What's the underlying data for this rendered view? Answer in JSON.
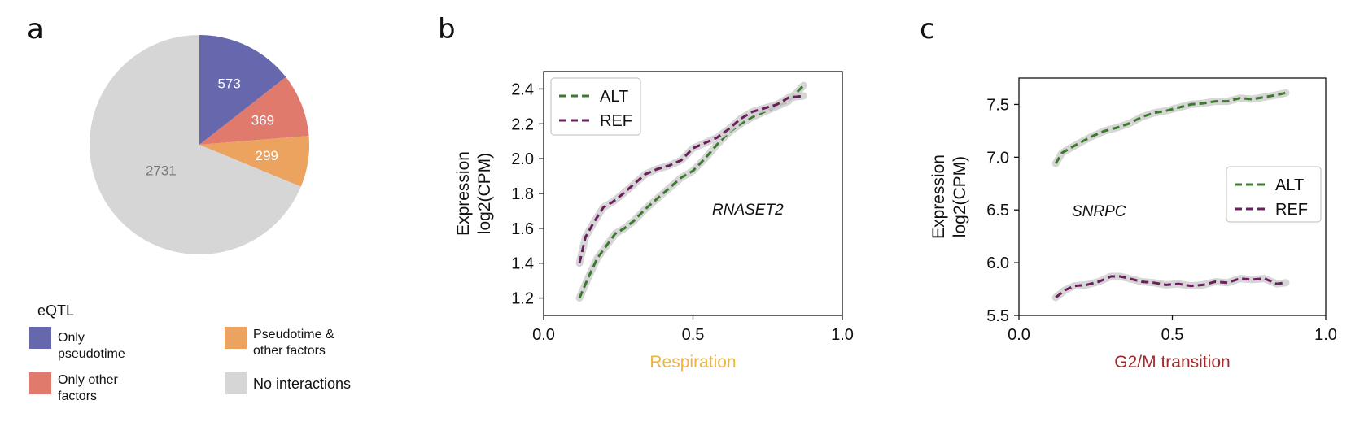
{
  "panels": {
    "a": "a",
    "b": "b",
    "c": "c"
  },
  "colors": {
    "only_pseudotime": "#6767ad",
    "only_other": "#df7a6d",
    "pseudotime_other": "#eba35f",
    "no_interactions": "#d6d6d6",
    "alt": "#3c7a2e",
    "ref": "#6b1f5e",
    "respiration_label": "#f0b240",
    "g2m_label": "#a02a2a"
  },
  "legend_a": {
    "title": "eQTL",
    "items": [
      {
        "key": "only_pseudotime",
        "label": "Only pseudotime"
      },
      {
        "key": "pseudotime_other",
        "label": "Pseudotime & other factors"
      },
      {
        "key": "only_other",
        "label": "Only other factors"
      },
      {
        "key": "no_interactions",
        "label": "No interactions"
      }
    ]
  },
  "chart_data": [
    {
      "type": "pie",
      "panel": "a",
      "slices": [
        {
          "label": "Only pseudotime",
          "value": 573,
          "color_key": "only_pseudotime"
        },
        {
          "label": "Only other factors",
          "value": 369,
          "color_key": "only_other"
        },
        {
          "label": "Pseudotime & other factors",
          "value": 299,
          "color_key": "pseudotime_other"
        },
        {
          "label": "No interactions",
          "value": 2731,
          "color_key": "no_interactions"
        }
      ],
      "start_angle_deg": 0,
      "direction": "clockwise"
    },
    {
      "type": "line",
      "panel": "b",
      "xlabel": "Respiration",
      "ylabel_lines": [
        "Expression",
        "log2(CPM)"
      ],
      "xlim": [
        0.0,
        1.0
      ],
      "ylim": [
        1.1,
        2.5
      ],
      "xticks": [
        0.0,
        0.5,
        1.0
      ],
      "xtick_labels": [
        "0.0",
        "0.5",
        "1.0"
      ],
      "yticks": [
        1.2,
        1.4,
        1.6,
        1.8,
        2.0,
        2.2,
        2.4
      ],
      "ytick_labels": [
        "1.2",
        "1.4",
        "1.6",
        "1.8",
        "2.0",
        "2.2",
        "2.4"
      ],
      "annotation": "RNASET2",
      "legend_position": "top-left",
      "grid": false,
      "series": [
        {
          "name": "ALT",
          "color_key": "alt",
          "x": [
            0.12,
            0.15,
            0.18,
            0.21,
            0.24,
            0.27,
            0.3,
            0.34,
            0.38,
            0.42,
            0.46,
            0.5,
            0.54,
            0.58,
            0.62,
            0.66,
            0.7,
            0.74,
            0.78,
            0.82,
            0.87
          ],
          "y": [
            1.2,
            1.32,
            1.43,
            1.5,
            1.57,
            1.6,
            1.64,
            1.71,
            1.77,
            1.83,
            1.89,
            1.93,
            2.0,
            2.08,
            2.15,
            2.2,
            2.24,
            2.27,
            2.3,
            2.33,
            2.42
          ]
        },
        {
          "name": "REF",
          "color_key": "ref",
          "x": [
            0.12,
            0.14,
            0.17,
            0.2,
            0.23,
            0.26,
            0.3,
            0.34,
            0.38,
            0.42,
            0.46,
            0.5,
            0.54,
            0.58,
            0.62,
            0.66,
            0.7,
            0.74,
            0.78,
            0.82,
            0.87
          ],
          "y": [
            1.4,
            1.55,
            1.64,
            1.72,
            1.75,
            1.79,
            1.85,
            1.91,
            1.94,
            1.96,
            1.99,
            2.06,
            2.09,
            2.12,
            2.17,
            2.23,
            2.27,
            2.29,
            2.31,
            2.35,
            2.36
          ]
        }
      ]
    },
    {
      "type": "line",
      "panel": "c",
      "xlabel": "G2/M transition",
      "ylabel_lines": [
        "Expression",
        "log2(CPM)"
      ],
      "xlim": [
        0.0,
        1.0
      ],
      "ylim": [
        5.5,
        7.75
      ],
      "xticks": [
        0.0,
        0.5,
        1.0
      ],
      "xtick_labels": [
        "0.0",
        "0.5",
        "1.0"
      ],
      "yticks": [
        5.5,
        6.0,
        6.5,
        7.0,
        7.5
      ],
      "ytick_labels": [
        "5.5",
        "6.0",
        "6.5",
        "7.0",
        "7.5"
      ],
      "annotation": "SNRPC",
      "legend_position": "center-right",
      "grid": false,
      "series": [
        {
          "name": "ALT",
          "color_key": "alt",
          "x": [
            0.12,
            0.14,
            0.17,
            0.2,
            0.24,
            0.28,
            0.32,
            0.36,
            0.4,
            0.44,
            0.48,
            0.52,
            0.56,
            0.6,
            0.64,
            0.68,
            0.72,
            0.76,
            0.8,
            0.84,
            0.87
          ],
          "y": [
            6.94,
            7.04,
            7.09,
            7.14,
            7.2,
            7.25,
            7.28,
            7.32,
            7.38,
            7.42,
            7.44,
            7.47,
            7.5,
            7.51,
            7.53,
            7.53,
            7.56,
            7.55,
            7.57,
            7.59,
            7.61
          ]
        },
        {
          "name": "REF",
          "color_key": "ref",
          "x": [
            0.12,
            0.15,
            0.18,
            0.22,
            0.26,
            0.3,
            0.33,
            0.36,
            0.4,
            0.44,
            0.48,
            0.52,
            0.56,
            0.6,
            0.64,
            0.68,
            0.72,
            0.76,
            0.8,
            0.84,
            0.87
          ],
          "y": [
            5.67,
            5.74,
            5.78,
            5.79,
            5.82,
            5.87,
            5.87,
            5.85,
            5.82,
            5.81,
            5.79,
            5.8,
            5.78,
            5.79,
            5.82,
            5.81,
            5.85,
            5.84,
            5.85,
            5.8,
            5.81
          ]
        }
      ]
    }
  ]
}
